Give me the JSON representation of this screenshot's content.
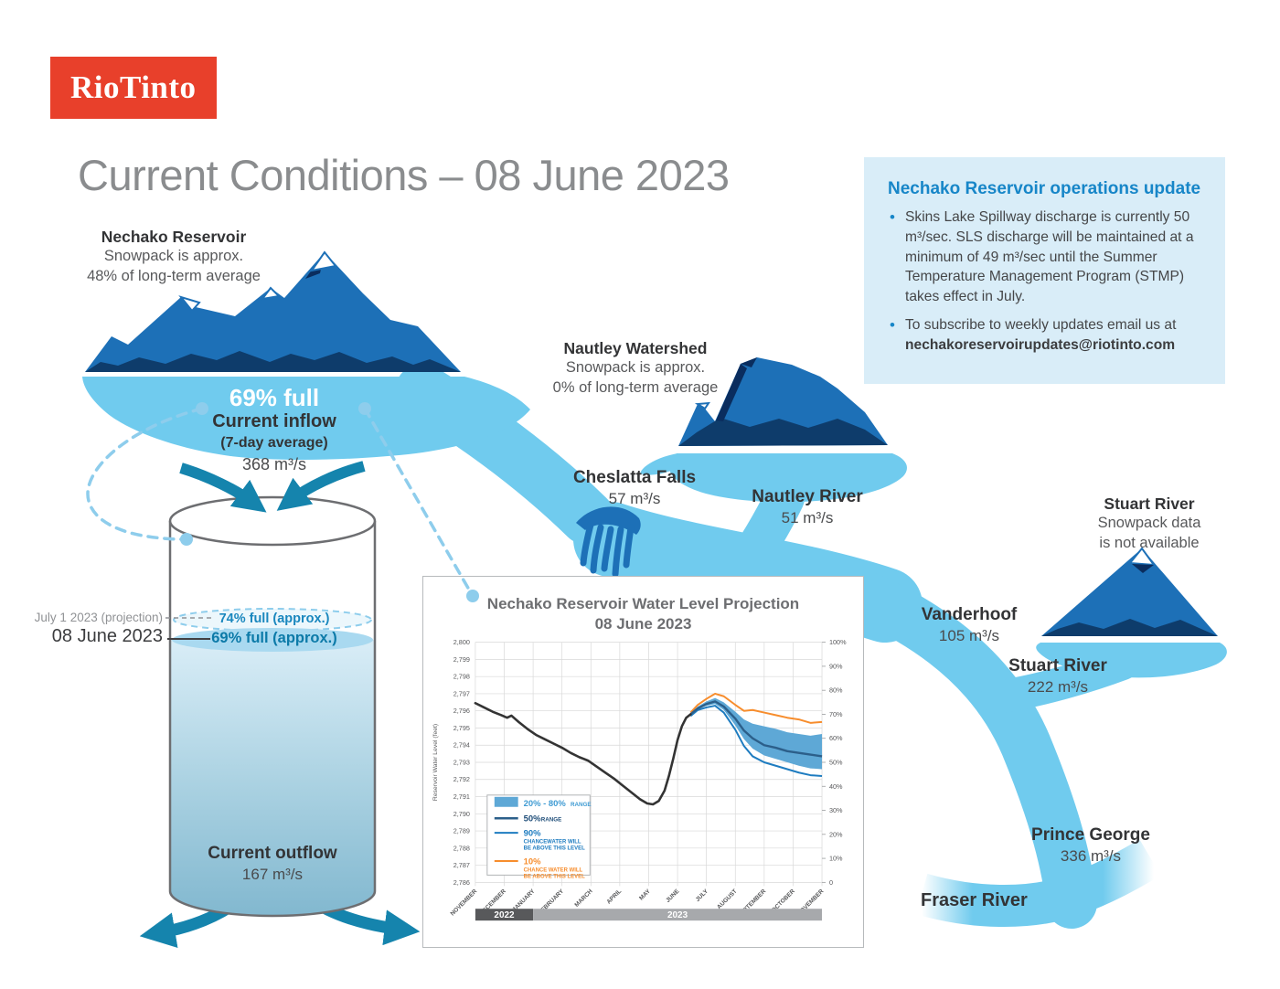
{
  "brand": {
    "logo_text": "RioTinto",
    "logo_color": "#e8402b"
  },
  "page": {
    "title": "Current Conditions – 08 June 2023"
  },
  "update_box": {
    "title": "Nechako Reservoir operations update",
    "bullet1": "Skins Lake Spillway discharge is currently 50 m³/sec. SLS discharge will be maintained at a minimum of 49 m³/sec until the Summer Temperature Management Program (STMP) takes effect in July.",
    "bullet2_intro": "To subscribe to weekly updates email us at",
    "email": "nechakoreservoirupdates@riotinto.com"
  },
  "nechako_watershed": {
    "name": "Nechako Reservoir",
    "line1": "Snowpack is approx.",
    "line2": "48% of long-term average"
  },
  "nautley_watershed": {
    "name": "Nautley Watershed",
    "line1": "Snowpack is approx.",
    "line2": "0% of long-term average"
  },
  "stuart_watershed": {
    "name": "Stuart River",
    "line1": "Snowpack data",
    "line2": "is not available"
  },
  "reservoir": {
    "fullness": "69% full",
    "inflow_label": "Current inflow",
    "inflow_sublabel": "(7-day average)",
    "inflow_value": "368 m³/s"
  },
  "cylinder": {
    "projection_label": "July 1 2023 (projection)",
    "projection_value": "74% full (approx.)",
    "current_label": "08 June 2023",
    "current_value": "69% full (approx.)",
    "outflow_label": "Current outflow",
    "outflow_value": "167 m³/s"
  },
  "flows": {
    "cheslatta": {
      "name": "Cheslatta Falls",
      "value": "57 m³/s"
    },
    "nautley": {
      "name": "Nautley River",
      "value": "51 m³/s"
    },
    "vanderhoof": {
      "name": "Vanderhoof",
      "value": "105 m³/s"
    },
    "stuart": {
      "name": "Stuart River",
      "value": "222 m³/s"
    },
    "prince_george": {
      "name": "Prince George",
      "value": "336 m³/s"
    },
    "fraser": {
      "name": "Fraser River"
    }
  },
  "colors": {
    "river": "#70cbee",
    "mountain": "#1d70b7",
    "mountain_dark": "#0e3c6b",
    "teal_arrow": "#1584ad",
    "info_blue": "#1786c8"
  },
  "chart_data": {
    "type": "line",
    "title": "Nechako Reservoir Water Level Projection",
    "subtitle": "08 June 2023",
    "ylabel": "Reservoir Water Level (feet)",
    "ylim": [
      2786,
      2800
    ],
    "right_axis": {
      "min": 0,
      "max": 100,
      "step": 10,
      "unit": "%"
    },
    "months": [
      "NOVEMBER",
      "DECEMBER",
      "JANUARY",
      "FEBRUARY",
      "MARCH",
      "APRIL",
      "MAY",
      "JUNE",
      "JULY",
      "AUGUST",
      "SEPTEMBER",
      "OCTOBER",
      "NOVEMBER"
    ],
    "year_bands": [
      {
        "label": "2022",
        "start_month_index": 0,
        "end_month_index": 2,
        "color": "#58595b"
      },
      {
        "label": "2023",
        "start_month_index": 2,
        "end_month_index": 12,
        "color": "#a7a9ac"
      }
    ],
    "legend": [
      {
        "kind": "band",
        "label": "20% - 80%",
        "sublabel_lines": [
          "RANGE"
        ],
        "color": "#5ea8d6",
        "label_color": "#3f9bd3"
      },
      {
        "kind": "line",
        "label": "50%",
        "sublabel_lines": [
          "RANGE"
        ],
        "color": "#2c5f8a",
        "label_color": "#1f4e79"
      },
      {
        "kind": "line",
        "label": "90%",
        "sublabel_lines": [
          "CHANCEWATER WILL",
          "BE ABOVE THIS LEVEL"
        ],
        "color": "#1e7cc0",
        "label_color": "#1e7cc0"
      },
      {
        "kind": "line",
        "label": "10%",
        "sublabel_lines": [
          "CHANCE WATER WILL",
          "BE ABOVE THIS LEVEL"
        ],
        "color": "#f78d2d",
        "label_color": "#f78d2d"
      }
    ],
    "series": {
      "historical": {
        "color": "#333333",
        "x": [
          0,
          0.3,
          0.6,
          0.9,
          1.1,
          1.25,
          1.5,
          1.8,
          2.1,
          2.4,
          2.7,
          3.0,
          3.3,
          3.6,
          3.9,
          4.2,
          4.5,
          4.8,
          5.1,
          5.4,
          5.7,
          5.95,
          6.15,
          6.35,
          6.55,
          6.7,
          6.85,
          7.0,
          7.15,
          7.3,
          7.45
        ],
        "y": [
          2796.45,
          2796.2,
          2795.95,
          2795.75,
          2795.6,
          2795.72,
          2795.35,
          2794.95,
          2794.6,
          2794.35,
          2794.1,
          2793.85,
          2793.55,
          2793.3,
          2793.1,
          2792.75,
          2792.4,
          2792.05,
          2791.65,
          2791.25,
          2790.85,
          2790.6,
          2790.55,
          2790.75,
          2791.35,
          2792.2,
          2793.2,
          2794.3,
          2795.1,
          2795.6,
          2795.8
        ]
      },
      "projection_x": [
        7.45,
        7.7,
        8.0,
        8.3,
        8.6,
        9.0,
        9.3,
        9.6,
        10.0,
        10.4,
        10.8,
        11.2,
        11.6,
        12.0
      ],
      "p10": {
        "color": "#f78d2d",
        "y": [
          2795.9,
          2796.35,
          2796.7,
          2797.0,
          2796.85,
          2796.35,
          2796.0,
          2796.05,
          2795.9,
          2795.75,
          2795.6,
          2795.5,
          2795.3,
          2795.35
        ]
      },
      "band_top": {
        "color": "#5ea8d6",
        "y": [
          2795.85,
          2796.25,
          2796.55,
          2796.75,
          2796.5,
          2795.95,
          2795.5,
          2795.25,
          2795.1,
          2794.95,
          2794.75,
          2794.65,
          2794.55,
          2794.65
        ]
      },
      "p50": {
        "color": "#2c5f8a",
        "y": [
          2795.8,
          2796.15,
          2796.4,
          2796.55,
          2796.25,
          2795.55,
          2794.85,
          2794.4,
          2794.0,
          2793.85,
          2793.65,
          2793.55,
          2793.45,
          2793.35
        ]
      },
      "band_bottom": {
        "color": "#5ea8d6",
        "y": [
          2795.75,
          2796.1,
          2796.3,
          2796.4,
          2796.05,
          2795.15,
          2794.35,
          2793.8,
          2793.4,
          2793.2,
          2793.0,
          2792.8,
          2792.65,
          2792.6
        ]
      },
      "p90": {
        "color": "#1e7cc0",
        "y": [
          2795.7,
          2796.05,
          2796.2,
          2796.3,
          2795.9,
          2794.9,
          2793.95,
          2793.35,
          2793.0,
          2792.8,
          2792.6,
          2792.4,
          2792.25,
          2792.2
        ]
      }
    }
  }
}
